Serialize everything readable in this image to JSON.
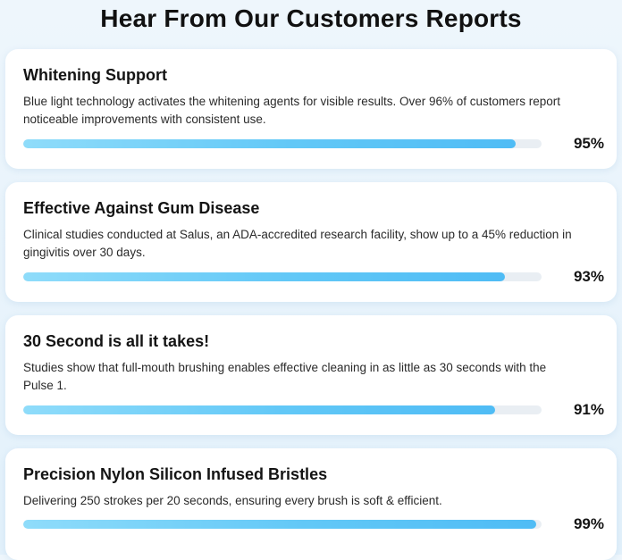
{
  "page": {
    "title": "Hear From Our Customers Reports"
  },
  "cards": [
    {
      "title": "Whitening Support",
      "description": "Blue light technology activates the whitening agents for visible results. Over 96% of customers report noticeable improvements with consistent use.",
      "percent_label": "95%",
      "percent": 95
    },
    {
      "title": "Effective Against Gum Disease",
      "description": "Clinical studies conducted at Salus, an ADA-accredited research facility, show up to a 45% reduction in gingivitis over 30 days.",
      "percent_label": "93%",
      "percent": 93
    },
    {
      "title": "30 Second is all it takes!",
      "description": "Studies show that full-mouth brushing enables effective cleaning in as little as 30 seconds with the Pulse 1.",
      "percent_label": "91%",
      "percent": 91
    },
    {
      "title": "Precision Nylon Silicon Infused Bristles",
      "description": "Delivering 250 strokes per 20 seconds, ensuring every brush is soft & efficient.",
      "percent_label": "99%",
      "percent": 99
    }
  ],
  "colors": {
    "bar_fill_start": "#8fdcfa",
    "bar_fill_end": "#4fbcf5",
    "bar_track": "#e9eef3",
    "background": "#eef6fc"
  }
}
